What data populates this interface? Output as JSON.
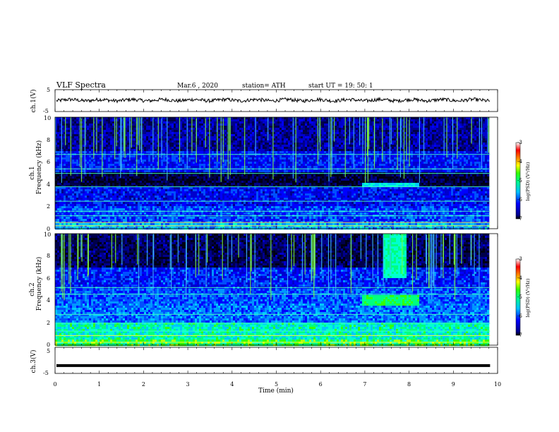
{
  "header": {
    "title": "VLF  Spectra",
    "date": "Mar.6  , 2020",
    "station": "station= ATH",
    "start": "start  UT  =    19: 50: 1"
  },
  "chart_data": [
    {
      "type": "line",
      "panel": "ch1-waveform",
      "ylabel": "ch.1(V)",
      "yticks": [
        "5",
        "-5"
      ],
      "ylim": [
        -5,
        5
      ],
      "xlim": [
        0,
        10
      ],
      "data_end_min": 9.83,
      "baseline_v": 0.2,
      "color": "#000000"
    },
    {
      "type": "heatmap",
      "panel": "ch1-spectrogram",
      "ylabel": "ch.1\nFrequency (kHz)",
      "ylabel_line1": "ch.1",
      "ylabel_line2": "Frequency  (kHz)",
      "yticks": [
        "0",
        "2",
        "4",
        "6",
        "8",
        "10"
      ],
      "ylim_khz": [
        0,
        10
      ],
      "xlim_min": [
        0,
        10
      ],
      "data_end_min": 9.83,
      "colorbar": {
        "label": "log(PSD) (V²/Hz)",
        "ticks": [
          "-3",
          "-4",
          "-5",
          "-6",
          "-7"
        ],
        "range": [
          -7,
          -3
        ]
      },
      "features": {
        "quiet_band_khz": [
          3.8,
          5.0
        ],
        "emission_band_khz": [
          3.8,
          4.2
        ],
        "emission_time_min": [
          6.9,
          8.2
        ]
      }
    },
    {
      "type": "heatmap",
      "panel": "ch2-spectrogram",
      "ylabel_line1": "ch.2",
      "ylabel_line2": "Frequency  (kHz)",
      "yticks": [
        "0",
        "2",
        "4",
        "6",
        "8",
        "10"
      ],
      "ylim_khz": [
        0,
        10
      ],
      "xlim_min": [
        0,
        10
      ],
      "data_end_min": 9.83,
      "colorbar": {
        "label": "log(PSD) (V²/Hz)",
        "ticks": [
          "-3",
          "-4",
          "-5",
          "-6",
          "-7"
        ],
        "range": [
          -7,
          -3
        ]
      },
      "features": {
        "emission_band_khz": [
          3.5,
          4.4
        ],
        "emission_time_min": [
          6.9,
          8.2
        ],
        "hiss_time_min": [
          6.9,
          8.2
        ]
      }
    },
    {
      "type": "line",
      "panel": "ch3-waveform",
      "ylabel": "ch.3(V)",
      "yticks": [
        "5",
        "-5"
      ],
      "ylim": [
        -5,
        5
      ],
      "xlim": [
        0,
        10
      ],
      "data_end_min": 9.83,
      "constant_v": -2.0,
      "xlabel": "Time  (min)",
      "xticks": [
        "0",
        "1",
        "2",
        "3",
        "4",
        "5",
        "6",
        "7",
        "8",
        "9",
        "10"
      ]
    }
  ]
}
